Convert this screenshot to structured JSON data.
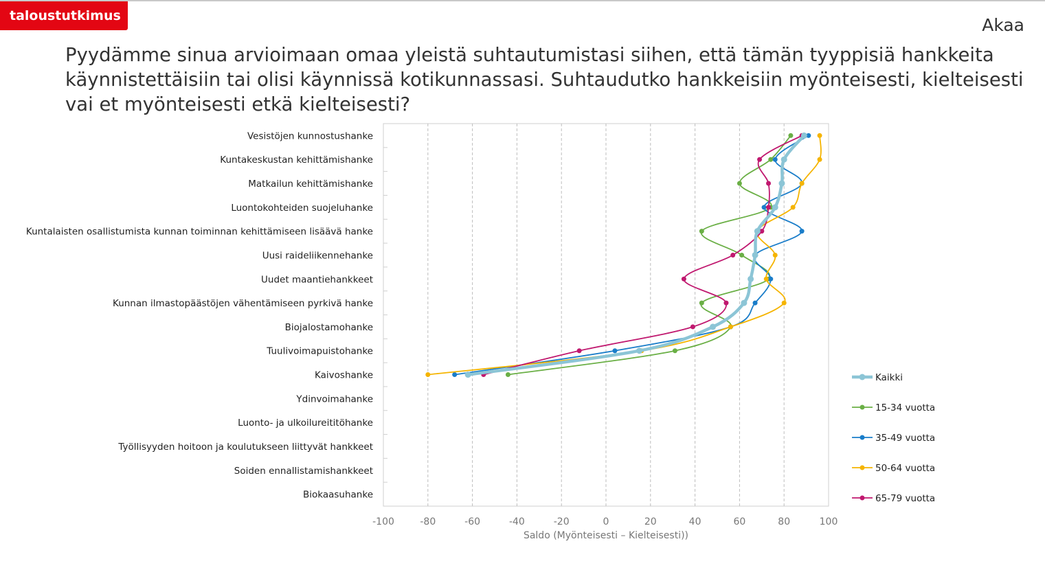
{
  "brand": {
    "label": "taloustutkimus"
  },
  "place": "Akaa",
  "question": "Pyydämme sinua arvioimaan omaa yleistä suhtautumistasi siihen, että tämän tyyppisiä hankkeita käynnistettäisiin tai olisi käynnissä kotikunnassasi. Suhtaudutko hankkeisiin myönteisesti, kielteisesti vai et myönteisesti etkä kielteisesti?",
  "chart_data": {
    "type": "line",
    "orientation": "horizontal",
    "smooth": true,
    "xlabel": "Saldo (Myönteisesti – Kielteisesti))",
    "xlim": [
      -100,
      100
    ],
    "xticks": [
      -100,
      -80,
      -60,
      -40,
      -20,
      0,
      20,
      40,
      60,
      80,
      100
    ],
    "grid": "vertical dashed",
    "legend_position": "right",
    "categories": [
      "Vesistöjen kunnostushanke",
      "Kuntakeskustan kehittämishanke",
      "Matkailun kehittämishanke",
      "Luontokohteiden suojeluhanke",
      "Kuntalaisten osallistumista kunnan toiminnan kehittämiseen lisäävä hanke",
      "Uusi raideliikennehanke",
      "Uudet maantiehankkeet",
      "Kunnan ilmastopäästöjen vähentämiseen pyrkivä hanke",
      "Biojalostamohanke",
      "Tuulivoimapuistohanke",
      "Kaivoshanke",
      "Ydinvoimahanke",
      "Luonto- ja ulkoilureititöhanke",
      "Työllisyyden hoitoon ja koulutukseen liittyvät hankkeet",
      "Soiden ennallistamishankkeet",
      "Biokaasuhanke"
    ],
    "series": [
      {
        "name": "Kaikki",
        "color": "#8cc5d6",
        "width": 4.5,
        "marker": 4.5,
        "values": [
          89,
          80,
          79,
          76,
          68,
          67,
          65,
          62,
          48,
          15,
          -62,
          null,
          null,
          null,
          null,
          null
        ]
      },
      {
        "name": "15-34 vuotta",
        "color": "#6aaf45",
        "width": 1.8,
        "marker": 3.5,
        "values": [
          83,
          74,
          60,
          74,
          43,
          61,
          73,
          43,
          56,
          31,
          -44,
          null,
          null,
          null,
          null,
          null
        ]
      },
      {
        "name": "35-49 vuotta",
        "color": "#1a7dc9",
        "width": 1.8,
        "marker": 3.5,
        "values": [
          91,
          76,
          88,
          71,
          88,
          67,
          74,
          67,
          56,
          4,
          -68,
          null,
          null,
          null,
          null,
          null
        ]
      },
      {
        "name": "50-64 vuotta",
        "color": "#f5b400",
        "width": 1.8,
        "marker": 3.5,
        "values": [
          96,
          96,
          88,
          84,
          68,
          76,
          72,
          80,
          56,
          16,
          -80,
          null,
          null,
          null,
          null,
          null
        ]
      },
      {
        "name": "65-79 vuotta",
        "color": "#c0186f",
        "width": 1.8,
        "marker": 3.5,
        "values": [
          88,
          69,
          73,
          73,
          70,
          57,
          35,
          54,
          39,
          -12,
          -55,
          null,
          null,
          null,
          null,
          null
        ]
      }
    ]
  }
}
